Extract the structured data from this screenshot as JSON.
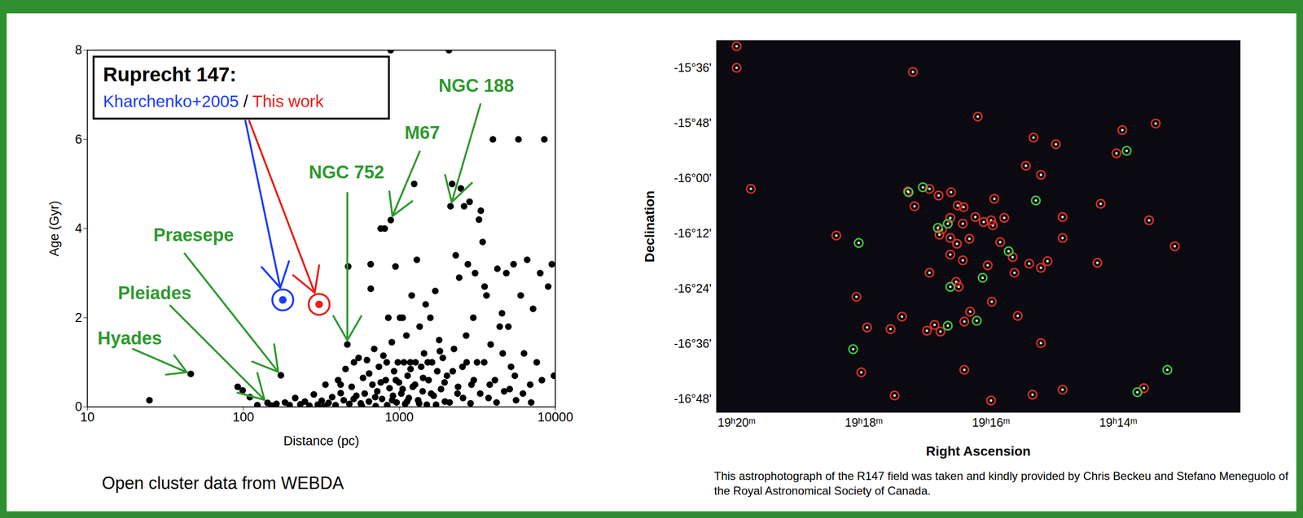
{
  "chart_data": [
    {
      "type": "scatter",
      "x_label": "Distance (pc)",
      "y_label": "Age (Gyr)",
      "caption": "Open cluster data from WEBDA",
      "log": "x",
      "grid": false,
      "xlim": [
        10,
        10000
      ],
      "xticks": [
        10,
        100,
        1000,
        10000
      ],
      "ylim": [
        0,
        8
      ],
      "yticks": [
        0,
        2,
        4,
        6,
        8
      ],
      "legend": "top-left",
      "legend_title": "Ruprecht 147:",
      "legend_separator": "/",
      "series": [
        {
          "color": "#000000",
          "x": [
            25,
            46,
            92,
            99,
            110,
            123,
            143,
            152,
            163,
            174,
            185,
            198,
            215,
            232,
            248,
            265,
            283,
            300,
            318,
            336,
            352,
            371,
            390,
            405,
            421,
            440,
            452,
            464,
            470,
            478,
            495,
            512,
            530,
            548,
            566,
            585,
            600,
            620,
            638,
            655,
            656,
            672,
            690,
            705,
            722,
            740,
            760,
            775,
            790,
            805,
            818,
            836,
            850,
            865,
            880,
            881,
            895,
            910,
            925,
            945,
            960,
            978,
            995,
            1010,
            1030,
            1050,
            1070,
            1090,
            1110,
            1130,
            1150,
            1175,
            1200,
            1220,
            1245,
            1270,
            1295,
            1320,
            1350,
            1380,
            1410,
            1440,
            1475,
            1500,
            1540,
            1580,
            1620,
            1660,
            1700,
            1750,
            1800,
            1850,
            1900,
            1960,
            2020,
            2080,
            2128,
            2180,
            2240,
            2300,
            2360,
            2420,
            2480,
            2540,
            2600,
            2680,
            2750,
            2820,
            2900,
            2980,
            3060,
            3150,
            3240,
            3330,
            3420,
            3520,
            3620,
            3730,
            3850,
            3980,
            4100,
            4250,
            4400,
            4550,
            4700,
            4850,
            5000,
            5200,
            5400,
            5600,
            5800,
            6000,
            6300,
            6600,
            6900,
            7200,
            7600,
            8000,
            8500,
            9000,
            9500,
            9800,
            330,
            420,
            510,
            575,
            640,
            700,
            760,
            830,
            900,
            950,
            1050,
            1120,
            1180,
            1260,
            1340,
            1420,
            1520,
            1600,
            1720,
            1820,
            1950,
            2100,
            2200,
            2380,
            2560,
            2700,
            2860,
            3000,
            3300,
            3500,
            3800,
            4200,
            4600,
            5100,
            5500,
            6200,
            7000,
            8200
          ],
          "values": [
            0.15,
            0.74,
            0.45,
            0.37,
            0.22,
            0.04,
            0.09,
            0.03,
            0.07,
            0.71,
            0.1,
            0.04,
            0.2,
            0.06,
            0.12,
            0.03,
            0.28,
            0.05,
            0.14,
            0.5,
            0.09,
            0.22,
            0.04,
            0.6,
            0.31,
            0.15,
            0.85,
            1.4,
            3.15,
            0.07,
            0.45,
            1.0,
            0.25,
            1.1,
            0.08,
            0.65,
            0.3,
            1.05,
            0.12,
            3.2,
            2.65,
            0.5,
            1.3,
            0.02,
            0.35,
            0.9,
            4.0,
            0.18,
            1.15,
            4.0,
            0.6,
            0.04,
            2.0,
            0.42,
            8.0,
            4.19,
            1.45,
            0.25,
            0.8,
            3.15,
            0.1,
            1.0,
            0.55,
            2.0,
            0.3,
            2.0,
            1.0,
            0.07,
            1.6,
            0.7,
            0.2,
            1.0,
            2.5,
            0.45,
            5.0,
            1.0,
            3.3,
            0.15,
            1.8,
            0.9,
            0.35,
            1.2,
            2.3,
            0.05,
            0.6,
            2.0,
            1.0,
            0.25,
            2.6,
            0.8,
            1.5,
            0.4,
            1.1,
            0.12,
            0.7,
            8.0,
            4.5,
            5.0,
            1.3,
            3.4,
            0.3,
            2.9,
            4.9,
            0.9,
            4.5,
            1.6,
            3.2,
            4.6,
            0.5,
            2.0,
            3.0,
            1.0,
            4.2,
            4.4,
            3.7,
            2.7,
            2.5,
            0.2,
            1.4,
            6.0,
            0.6,
            3.1,
            1.8,
            2.1,
            0.35,
            3.0,
            1.8,
            0.9,
            3.2,
            0.15,
            6.0,
            2.5,
            1.2,
            3.3,
            0.5,
            2.2,
            1.0,
            3.0,
            6.0,
            2.7,
            3.2,
            0.7,
            0.02,
            0.5,
            0.18,
            0.02,
            0.75,
            0.22,
            0.55,
            1.0,
            0.15,
            0.6,
            0.4,
            0.12,
            0.85,
            0.5,
            0.08,
            0.65,
            1.0,
            0.3,
            0.05,
            1.25,
            0.55,
            0.1,
            0.8,
            0.45,
            0.2,
            1.0,
            0.08,
            0.6,
            0.3,
            1.0,
            0.5,
            0.1,
            1.2,
            0.4,
            0.7,
            0.3,
            0.1,
            0.6
          ]
        },
        {
          "name": "Kharchenko+2005",
          "color": "#1a3cff",
          "x": [
            179
          ],
          "values": [
            2.4
          ]
        },
        {
          "name": "This work",
          "color": "#e8201a",
          "x": [
            306
          ],
          "values": [
            2.3
          ]
        }
      ],
      "annotations": [
        {
          "text": "Hyades",
          "x": 46,
          "y": 0.74,
          "color": "#2e9a2e"
        },
        {
          "text": "Pleiades",
          "x": 143,
          "y": 0.09,
          "color": "#2e9a2e"
        },
        {
          "text": "Praesepe",
          "x": 174,
          "y": 0.71,
          "color": "#2e9a2e"
        },
        {
          "text": "NGC 752",
          "x": 464,
          "y": 1.4,
          "color": "#2e9a2e"
        },
        {
          "text": "M67",
          "x": 881,
          "y": 4.19,
          "color": "#2e9a2e"
        },
        {
          "text": "NGC 188",
          "x": 2128,
          "y": 4.5,
          "color": "#2e9a2e"
        }
      ]
    },
    {
      "type": "scatter",
      "x_label": "Right Ascension",
      "y_label": "Declination",
      "caption": "This astrophotograph of the R147 field was taken and kindly provided by Chris Beckeu and Stefano Meneguolo of the Royal Astronomical Society of Canada.",
      "grid": false,
      "xlim": [
        290.08,
        288.02
      ],
      "xticks": [
        {
          "value": 290,
          "label": "19ʰ20ᵐ"
        },
        {
          "value": 289.5,
          "label": "19ʰ18ᵐ"
        },
        {
          "value": 289,
          "label": "19ʰ16ᵐ"
        },
        {
          "value": 288.5,
          "label": "19ʰ14ᵐ"
        }
      ],
      "ylim": [
        -16.85,
        -15.5
      ],
      "yticks": [
        {
          "value": -15.6,
          "label": "-15°36'"
        },
        {
          "value": -15.8,
          "label": "-15°48'"
        },
        {
          "value": -16.0,
          "label": "-16°00'"
        },
        {
          "value": -16.2,
          "label": "-16°12'"
        },
        {
          "value": -16.4,
          "label": "-16°24'"
        },
        {
          "value": -16.6,
          "label": "-16°36'"
        },
        {
          "value": -16.8,
          "label": "-16°48'"
        }
      ],
      "series": [
        {
          "color": "#e03020",
          "marker": "ring",
          "x": [
            290.0,
            290.0,
            289.307,
            289.052,
            288.353,
            288.484,
            288.833,
            288.745,
            288.507,
            288.863,
            288.804,
            289.944,
            289.327,
            289.242,
            289.206,
            289.157,
            289.301,
            289.131,
            289.108,
            288.987,
            288.719,
            288.569,
            288.379,
            289.608,
            289.16,
            289.062,
            289.111,
            289.193,
            289.029,
            289.0,
            288.993,
            288.948,
            289.16,
            289.134,
            289.203,
            289.085,
            289.16,
            288.964,
            288.915,
            288.85,
            288.804,
            288.778,
            288.719,
            288.582,
            288.278,
            289.111,
            289.013,
            289.242,
            289.137,
            289.127,
            288.908,
            289.529,
            288.997,
            289.082,
            289.35,
            288.895,
            289.487,
            289.395,
            289.252,
            289.222,
            289.199,
            289.105,
            288.804,
            289.51,
            289.105,
            289.379,
            289.0,
            288.837,
            288.719,
            288.399
          ],
          "values": [
            -15.522,
            -15.6,
            -15.615,
            -15.777,
            -15.802,
            -15.826,
            -15.853,
            -15.877,
            -15.91,
            -15.955,
            -15.988,
            -16.039,
            -16.048,
            -16.039,
            -16.063,
            -16.051,
            -16.102,
            -16.099,
            -16.105,
            -16.075,
            -16.141,
            -16.093,
            -16.153,
            -16.208,
            -16.144,
            -16.141,
            -16.165,
            -16.186,
            -16.159,
            -16.153,
            -16.171,
            -16.144,
            -16.217,
            -16.238,
            -16.205,
            -16.22,
            -16.277,
            -16.232,
            -16.286,
            -16.31,
            -16.325,
            -16.301,
            -16.217,
            -16.307,
            -16.247,
            -16.298,
            -16.316,
            -16.343,
            -16.376,
            -16.394,
            -16.343,
            -16.43,
            -16.448,
            -16.484,
            -16.502,
            -16.499,
            -16.541,
            -16.547,
            -16.553,
            -16.532,
            -16.556,
            -16.52,
            -16.598,
            -16.704,
            -16.695,
            -16.788,
            -16.806,
            -16.785,
            -16.767,
            -16.761
          ]
        },
        {
          "color": "#3fd03f",
          "marker": "ring",
          "x": [
            288.467,
            288.824,
            289.324,
            289.268,
            289.17,
            289.209,
            289.52,
            288.931,
            289.033,
            289.16,
            289.056,
            289.17,
            289.542,
            288.307,
            288.425
          ],
          "values": [
            -15.901,
            -16.081,
            -16.051,
            -16.033,
            -16.165,
            -16.18,
            -16.235,
            -16.265,
            -16.361,
            -16.394,
            -16.517,
            -16.535,
            -16.62,
            -16.695,
            -16.776
          ]
        }
      ]
    }
  ]
}
